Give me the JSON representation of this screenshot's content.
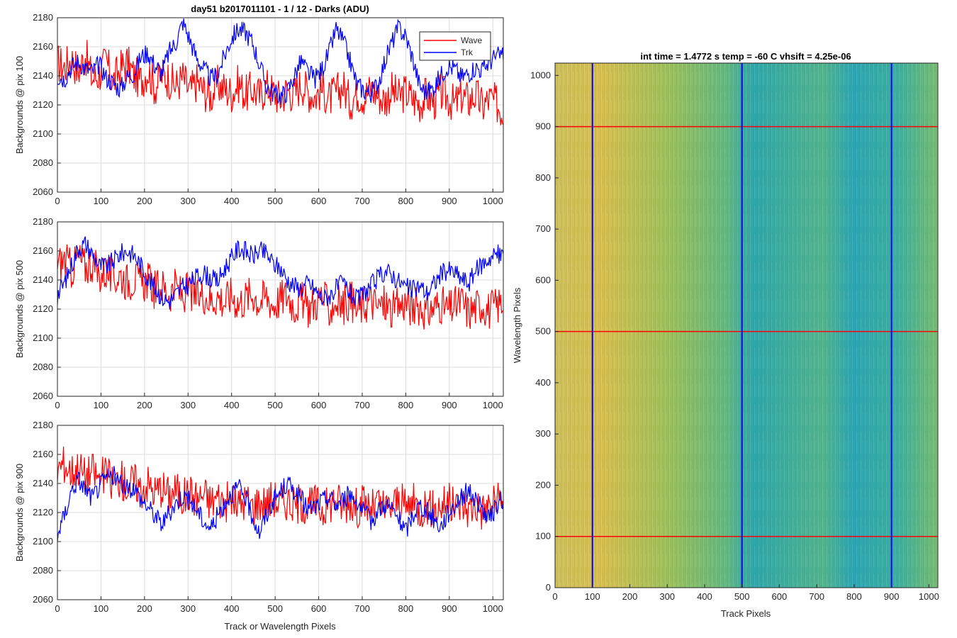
{
  "figure": {
    "bg": "#ffffff",
    "wave_color": "#ff0000",
    "trk_color": "#0000ff",
    "grid_color": "#dcdcdc",
    "colormap": [
      "#e8c24a",
      "#a8c650",
      "#4fb896",
      "#29a8b8"
    ]
  },
  "chart_data": [
    {
      "type": "line",
      "title": "day51 b2017011101 - 1 / 12 - Darks (ADU)",
      "xlabel": "",
      "ylabel": "Backgrounds @ pix 100",
      "xlim": [
        0,
        1024
      ],
      "ylim": [
        2060,
        2180
      ],
      "xticks": [
        0,
        100,
        200,
        300,
        400,
        500,
        600,
        700,
        800,
        900,
        1000
      ],
      "yticks": [
        2060,
        2080,
        2100,
        2120,
        2140,
        2160,
        2180
      ],
      "grid": true,
      "legend": "top-right",
      "series": [
        {
          "name": "Wave",
          "color": "#ff0000",
          "x_start": 0,
          "x_step": 16,
          "values": [
            2149,
            2146,
            2152,
            2143,
            2155,
            2138,
            2141,
            2150,
            2136,
            2145,
            2149,
            2140,
            2137,
            2144,
            2132,
            2141,
            2138,
            2133,
            2139,
            2129,
            2136,
            2130,
            2126,
            2134,
            2131,
            2128,
            2135,
            2127,
            2131,
            2126,
            2133,
            2129,
            2124,
            2131,
            2127,
            2135,
            2129,
            2126,
            2131,
            2124,
            2128,
            2133,
            2122,
            2129,
            2126,
            2131,
            2127,
            2123,
            2130,
            2125,
            2129,
            2124,
            2121,
            2127,
            2122,
            2128,
            2125,
            2120,
            2126,
            2123,
            2127,
            2119,
            2124,
            2121,
            2115
          ]
        },
        {
          "name": "Trk",
          "color": "#0000ff",
          "x_start": 0,
          "x_step": 16,
          "values": [
            2140,
            2138,
            2146,
            2150,
            2145,
            2143,
            2148,
            2139,
            2135,
            2131,
            2139,
            2142,
            2153,
            2156,
            2147,
            2142,
            2156,
            2163,
            2177,
            2165,
            2152,
            2145,
            2138,
            2141,
            2154,
            2166,
            2172,
            2170,
            2163,
            2148,
            2133,
            2128,
            2126,
            2129,
            2140,
            2150,
            2142,
            2138,
            2145,
            2156,
            2172,
            2164,
            2150,
            2134,
            2130,
            2128,
            2135,
            2150,
            2163,
            2173,
            2167,
            2152,
            2133,
            2128,
            2132,
            2140,
            2147,
            2145,
            2139,
            2142,
            2146,
            2144,
            2150,
            2153,
            2155
          ]
        }
      ]
    },
    {
      "type": "line",
      "title": "",
      "xlabel": "",
      "ylabel": "Backgrounds @ pix 500",
      "xlim": [
        0,
        1024
      ],
      "ylim": [
        2060,
        2180
      ],
      "xticks": [
        0,
        100,
        200,
        300,
        400,
        500,
        600,
        700,
        800,
        900,
        1000
      ],
      "yticks": [
        2060,
        2080,
        2100,
        2120,
        2140,
        2160,
        2180
      ],
      "grid": true,
      "series": [
        {
          "name": "Wave",
          "color": "#ff0000",
          "x_start": 0,
          "x_step": 16,
          "values": [
            2150,
            2154,
            2147,
            2155,
            2149,
            2152,
            2143,
            2146,
            2140,
            2144,
            2139,
            2141,
            2137,
            2140,
            2133,
            2136,
            2131,
            2135,
            2129,
            2133,
            2127,
            2131,
            2126,
            2129,
            2125,
            2130,
            2124,
            2128,
            2131,
            2125,
            2129,
            2123,
            2127,
            2130,
            2122,
            2126,
            2121,
            2124,
            2129,
            2120,
            2125,
            2122,
            2127,
            2119,
            2123,
            2126,
            2121,
            2124,
            2118,
            2122,
            2125,
            2120,
            2123,
            2117,
            2121,
            2124,
            2119,
            2122,
            2125,
            2118,
            2121,
            2124,
            2119,
            2122,
            2125
          ]
        },
        {
          "name": "Trk",
          "color": "#0000ff",
          "x_start": 0,
          "x_step": 16,
          "values": [
            2130,
            2138,
            2150,
            2162,
            2165,
            2158,
            2150,
            2149,
            2153,
            2158,
            2160,
            2157,
            2150,
            2141,
            2135,
            2128,
            2125,
            2130,
            2135,
            2138,
            2142,
            2145,
            2141,
            2139,
            2148,
            2155,
            2162,
            2160,
            2156,
            2160,
            2158,
            2151,
            2148,
            2140,
            2136,
            2134,
            2138,
            2133,
            2127,
            2129,
            2134,
            2138,
            2131,
            2126,
            2131,
            2136,
            2141,
            2146,
            2144,
            2139,
            2135,
            2133,
            2136,
            2131,
            2137,
            2144,
            2147,
            2145,
            2141,
            2138,
            2146,
            2151,
            2155,
            2158,
            2156
          ]
        }
      ]
    },
    {
      "type": "line",
      "title": "",
      "xlabel": "Track or Wavelength Pixels",
      "ylabel": "Backgrounds @ pix 900",
      "xlim": [
        0,
        1024
      ],
      "ylim": [
        2060,
        2180
      ],
      "xticks": [
        0,
        100,
        200,
        300,
        400,
        500,
        600,
        700,
        800,
        900,
        1000
      ],
      "yticks": [
        2060,
        2080,
        2100,
        2120,
        2140,
        2160,
        2180
      ],
      "grid": true,
      "series": [
        {
          "name": "Wave",
          "color": "#ff0000",
          "x_start": 0,
          "x_step": 16,
          "values": [
            2150,
            2154,
            2148,
            2152,
            2145,
            2149,
            2143,
            2147,
            2140,
            2144,
            2138,
            2142,
            2136,
            2140,
            2134,
            2138,
            2132,
            2136,
            2130,
            2134,
            2129,
            2133,
            2127,
            2131,
            2126,
            2130,
            2125,
            2129,
            2124,
            2128,
            2126,
            2131,
            2125,
            2129,
            2124,
            2128,
            2123,
            2127,
            2122,
            2126,
            2130,
            2124,
            2128,
            2123,
            2127,
            2122,
            2126,
            2121,
            2125,
            2129,
            2123,
            2127,
            2122,
            2126,
            2121,
            2125,
            2128,
            2123,
            2127,
            2122,
            2126,
            2121,
            2125,
            2128,
            2124
          ]
        },
        {
          "name": "Trk",
          "color": "#0000ff",
          "x_start": 0,
          "x_step": 16,
          "values": [
            2105,
            2118,
            2135,
            2143,
            2136,
            2130,
            2138,
            2144,
            2146,
            2140,
            2136,
            2138,
            2129,
            2124,
            2118,
            2112,
            2119,
            2126,
            2132,
            2128,
            2122,
            2114,
            2109,
            2118,
            2127,
            2133,
            2137,
            2130,
            2117,
            2106,
            2118,
            2128,
            2134,
            2140,
            2135,
            2129,
            2122,
            2124,
            2128,
            2131,
            2125,
            2129,
            2133,
            2128,
            2120,
            2114,
            2121,
            2126,
            2122,
            2115,
            2107,
            2118,
            2125,
            2121,
            2116,
            2110,
            2119,
            2125,
            2131,
            2135,
            2129,
            2122,
            2115,
            2124,
            2130
          ]
        }
      ]
    },
    {
      "type": "heatmap",
      "title": "int time = 1.4772 s    temp = -60 C    vhsift = 4.25e-06",
      "xlabel": "Track Pixels",
      "ylabel": "Wavelength Pixels",
      "xlim": [
        0,
        1024
      ],
      "ylim": [
        0,
        1024
      ],
      "xticks": [
        0,
        100,
        200,
        300,
        400,
        500,
        600,
        700,
        800,
        900,
        1000
      ],
      "yticks": [
        0,
        100,
        200,
        300,
        400,
        500,
        600,
        700,
        800,
        900,
        1000
      ],
      "grid": false,
      "cut_lines": {
        "vertical": {
          "x": [
            100,
            500,
            900
          ],
          "color": "#0000ff"
        },
        "horizontal": {
          "y": [
            100,
            500,
            900
          ],
          "color": "#ff0000"
        }
      }
    }
  ]
}
